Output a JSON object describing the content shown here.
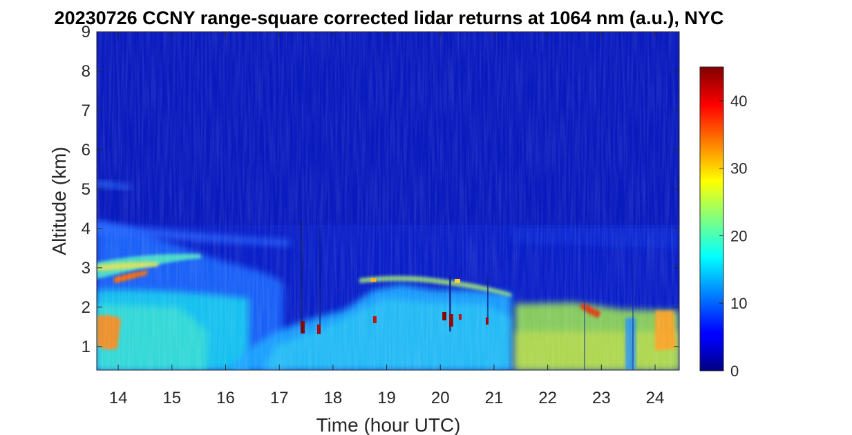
{
  "chart_data": {
    "type": "heatmap",
    "title": "20230726 CCNY range-square corrected lidar returns at 1064 nm (a.u.), NYC",
    "xlabel": "Time (hour UTC)",
    "ylabel": "Altitude (km)",
    "xlim": [
      13.6,
      24.45
    ],
    "ylim": [
      0.4,
      9
    ],
    "x_ticks": [
      "14",
      "15",
      "16",
      "17",
      "18",
      "19",
      "20",
      "21",
      "22",
      "23",
      "24"
    ],
    "y_ticks": [
      "1",
      "2",
      "3",
      "4",
      "5",
      "6",
      "7",
      "8",
      "9"
    ],
    "colormap": "jet",
    "colorbar": {
      "range": [
        0,
        45
      ],
      "ticks": [
        "0",
        "10",
        "20",
        "30",
        "40"
      ]
    },
    "features": [
      {
        "name": "low-level aerosol layer",
        "x": [
          13.6,
          14.5
        ],
        "y": [
          1.0,
          2.0
        ],
        "value": 30
      },
      {
        "name": "elevated smoke layer",
        "x": [
          13.6,
          15.5
        ],
        "y": [
          2.5,
          3.2
        ],
        "value": 25
      },
      {
        "name": "boundary layer plumes",
        "x": [
          16.8,
          21.4
        ],
        "y": [
          0.4,
          2.6
        ],
        "value": 15
      },
      {
        "name": "cloud tops",
        "x": [
          17.4,
          20.9
        ],
        "y": [
          1.4,
          1.8
        ],
        "value": 45
      },
      {
        "name": "afternoon mixed layer",
        "x": [
          21.4,
          24.45
        ],
        "y": [
          0.4,
          2.0
        ],
        "value": 25
      },
      {
        "name": "cloud base layer",
        "x": [
          22.6,
          23.2
        ],
        "y": [
          1.8,
          2.0
        ],
        "value": 40
      }
    ],
    "grid": false
  }
}
